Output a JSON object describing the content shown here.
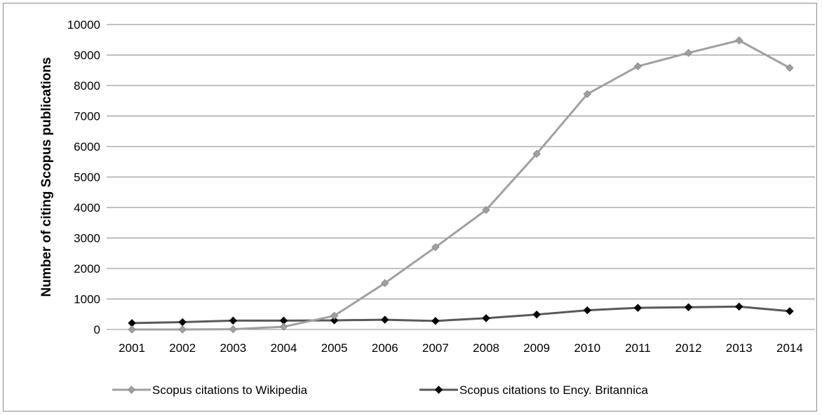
{
  "chart_data": {
    "type": "line",
    "title": "",
    "xlabel": "",
    "ylabel": "Number of citing Scopus publications",
    "ylim": [
      0,
      10000
    ],
    "yticks": [
      0,
      1000,
      2000,
      3000,
      4000,
      5000,
      6000,
      7000,
      8000,
      9000,
      10000
    ],
    "grid": true,
    "legend_position": "bottom",
    "categories": [
      "2001",
      "2002",
      "2003",
      "2004",
      "2005",
      "2006",
      "2007",
      "2008",
      "2009",
      "2010",
      "2011",
      "2012",
      "2013",
      "2014"
    ],
    "series": [
      {
        "name": "Scopus citations to Wikipedia",
        "color": "#a0a0a0",
        "marker": "diamond",
        "values": [
          0,
          0,
          10,
          90,
          450,
          1520,
          2700,
          3920,
          5760,
          7720,
          8630,
          9070,
          9480,
          8580
        ]
      },
      {
        "name": "Scopus citations to Ency. Britannica",
        "color": "#595959",
        "marker": "diamond",
        "marker_color": "#000000",
        "values": [
          210,
          240,
          290,
          290,
          300,
          320,
          280,
          370,
          490,
          630,
          710,
          730,
          750,
          600
        ]
      }
    ]
  }
}
